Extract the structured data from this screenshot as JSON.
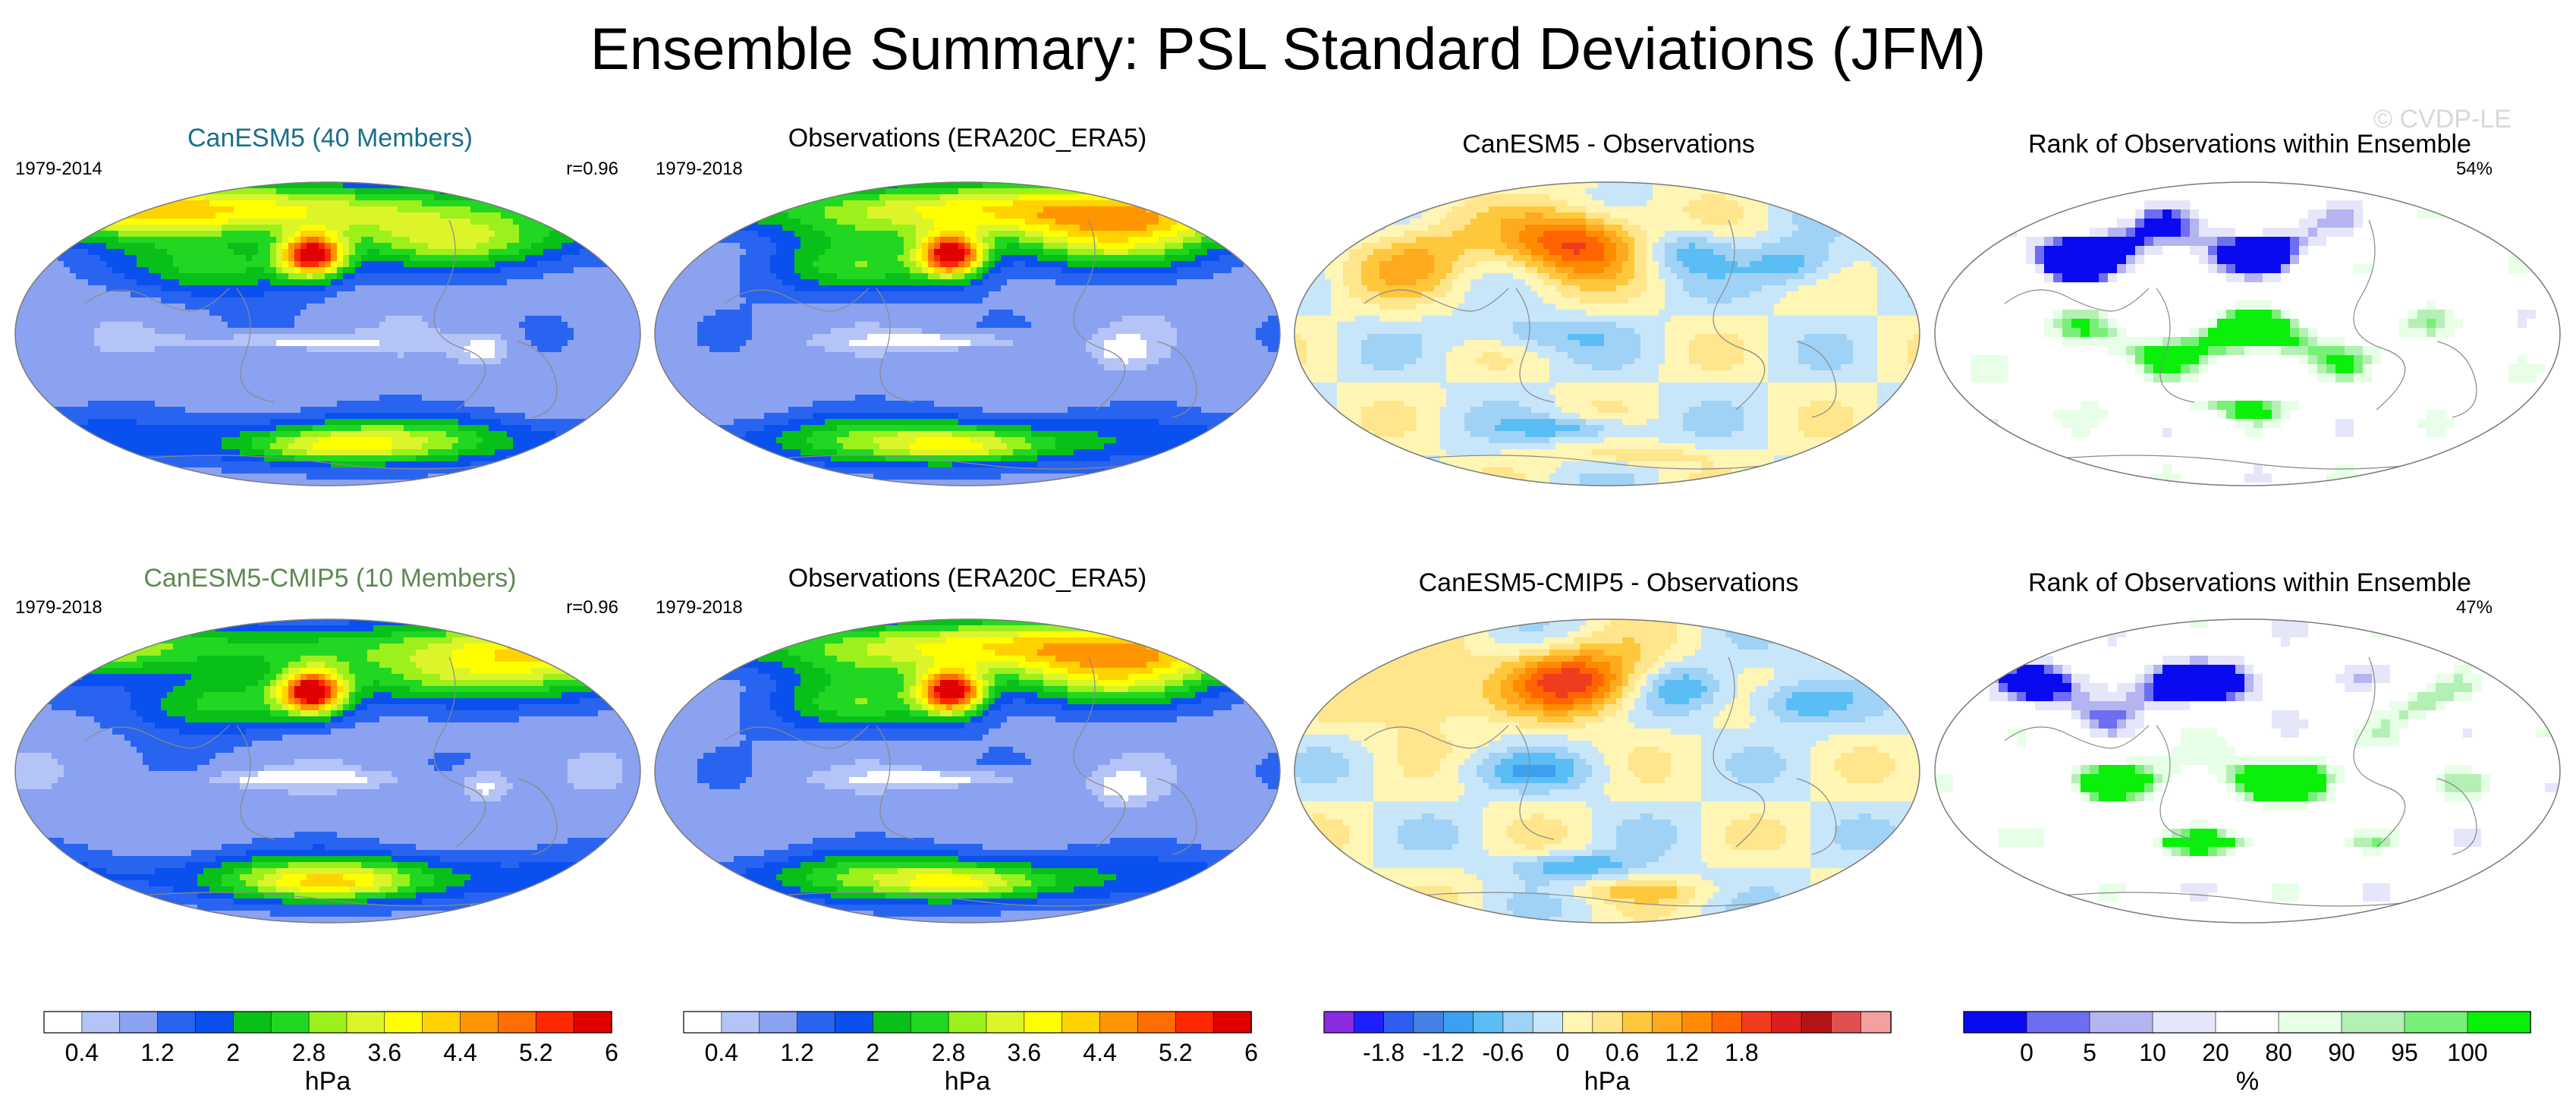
{
  "title": "Ensemble Summary: PSL Standard Deviations (JFM)",
  "watermark": "© CVDP-LE",
  "colors": {
    "title_model1": "#1a6f8a",
    "title_model2": "#5e8a52",
    "coast": "#8a8a8a",
    "outline": "#7a7a7a"
  },
  "chart_data": [
    {
      "type": "heatmap",
      "title": "CanESM5 (40 Members)",
      "period": "1979-2014",
      "stat": "r=0.96",
      "units": "hPa",
      "field": "std",
      "seed": 3,
      "palette": "std"
    },
    {
      "type": "heatmap",
      "title": "Observations (ERA20C_ERA5)",
      "period": "1979-2018",
      "stat": "",
      "units": "hPa",
      "field": "std",
      "seed": 7,
      "palette": "std"
    },
    {
      "type": "heatmap",
      "title": "CanESM5 - Observations",
      "period": "",
      "stat": "",
      "units": "hPa",
      "field": "diff",
      "seed": 11,
      "palette": "diff"
    },
    {
      "type": "heatmap",
      "title": "Rank of Observations within Ensemble",
      "period": "",
      "stat": "54%",
      "units": "%",
      "field": "rank",
      "seed": 17,
      "palette": "rank"
    },
    {
      "type": "heatmap",
      "title": "CanESM5-CMIP5 (10 Members)",
      "period": "1979-2018",
      "stat": "r=0.96",
      "units": "hPa",
      "field": "std",
      "seed": 5,
      "palette": "std"
    },
    {
      "type": "heatmap",
      "title": "Observations (ERA20C_ERA5)",
      "period": "1979-2018",
      "stat": "",
      "units": "hPa",
      "field": "std",
      "seed": 7,
      "palette": "std"
    },
    {
      "type": "heatmap",
      "title": "CanESM5-CMIP5 - Observations",
      "period": "",
      "stat": "",
      "units": "hPa",
      "field": "diff",
      "seed": 13,
      "palette": "diff"
    },
    {
      "type": "heatmap",
      "title": "Rank of Observations within Ensemble",
      "period": "",
      "stat": "47%",
      "units": "%",
      "field": "rank",
      "seed": 19,
      "palette": "rank"
    }
  ],
  "colorbars": [
    {
      "name": "std-1",
      "units": "hPa",
      "levels": [
        0.4,
        0.8,
        1.2,
        1.6,
        2,
        2.4,
        2.8,
        3.2,
        3.6,
        4.0,
        4.4,
        4.8,
        5.2,
        5.6,
        6,
        6.4
      ],
      "labels": [
        "0.4",
        "1.2",
        "2",
        "2.8",
        "3.6",
        "4.4",
        "5.2",
        "6"
      ],
      "label_at": [
        0,
        2,
        4,
        6,
        8,
        10,
        12,
        14
      ],
      "colors": [
        "#ffffff",
        "#b4c4f6",
        "#8aa2f0",
        "#2864f0",
        "#0a50ee",
        "#08c018",
        "#22d722",
        "#9cf01c",
        "#dcf52a",
        "#ffff00",
        "#ffd200",
        "#ff9600",
        "#ff6e00",
        "#ff2800",
        "#e10000"
      ]
    },
    {
      "name": "std-2",
      "units": "hPa",
      "levels": [
        0.4,
        0.8,
        1.2,
        1.6,
        2,
        2.4,
        2.8,
        3.2,
        3.6,
        4.0,
        4.4,
        4.8,
        5.2,
        5.6,
        6,
        6.4
      ],
      "labels": [
        "0.4",
        "1.2",
        "2",
        "2.8",
        "3.6",
        "4.4",
        "5.2",
        "6"
      ],
      "label_at": [
        0,
        2,
        4,
        6,
        8,
        10,
        12,
        14
      ],
      "colors": [
        "#ffffff",
        "#b4c4f6",
        "#8aa2f0",
        "#2864f0",
        "#0a50ee",
        "#08c018",
        "#22d722",
        "#9cf01c",
        "#dcf52a",
        "#ffff00",
        "#ffd200",
        "#ff9600",
        "#ff6e00",
        "#ff2800",
        "#e10000"
      ]
    },
    {
      "name": "diff",
      "units": "hPa",
      "levels": [
        -2.1,
        -1.8,
        -1.5,
        -1.2,
        -0.9,
        -0.6,
        -0.3,
        0,
        0.3,
        0.6,
        0.9,
        1.2,
        1.5,
        1.8,
        2.1
      ],
      "labels": [
        "-1.8",
        "-1.2",
        "-0.6",
        "0",
        "0.6",
        "1.2",
        "1.8"
      ],
      "label_at": [
        1,
        3,
        5,
        7,
        9,
        11,
        13
      ],
      "colors": [
        "#8a2be2",
        "#1e1eff",
        "#2d5ef0",
        "#4682e6",
        "#3ca0f0",
        "#5abef5",
        "#a0d2f5",
        "#c8e6fa",
        "#fff5b4",
        "#ffe68c",
        "#ffc83c",
        "#ffaa1e",
        "#ff8c00",
        "#ff6400",
        "#f03c1e",
        "#dc1e1e",
        "#b41414",
        "#e05050",
        "#f5a0a0"
      ]
    },
    {
      "name": "rank",
      "units": "%",
      "levels": [
        0,
        5,
        10,
        20,
        80,
        90,
        95,
        100
      ],
      "labels": [
        "0",
        "5",
        "10",
        "20",
        "80",
        "90",
        "95",
        "100"
      ],
      "label_at": [
        0,
        1,
        2,
        3,
        4,
        5,
        6,
        7
      ],
      "colors": [
        "#0a0af0",
        "#6e6ef0",
        "#b4b4f0",
        "#e6e6fa",
        "#ffffff",
        "#e6ffe6",
        "#b4f0b4",
        "#78f078",
        "#0af00a"
      ]
    }
  ]
}
